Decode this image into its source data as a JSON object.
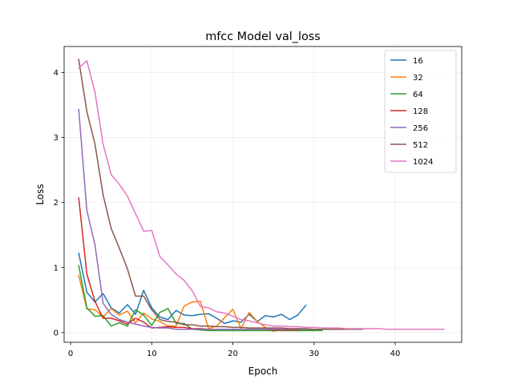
{
  "chart_data": {
    "type": "line",
    "title": "mfcc Model val_loss",
    "xlabel": "Epoch",
    "ylabel": "Loss",
    "xlim": [
      -0.8,
      48.2
    ],
    "ylim": [
      -0.15,
      4.4
    ],
    "xticks": [
      0,
      10,
      20,
      30,
      40
    ],
    "yticks": [
      0,
      1,
      2,
      3,
      4
    ],
    "grid": true,
    "legend_position": "top-right",
    "series": [
      {
        "name": "16",
        "color": "#1f77b4",
        "x": [
          1,
          2,
          3,
          4,
          5,
          6,
          7,
          8,
          9,
          10,
          11,
          12,
          13,
          14,
          15,
          16,
          17,
          18,
          19,
          20,
          21,
          22,
          23,
          24,
          25,
          26,
          27,
          28,
          29
        ],
        "y": [
          1.22,
          0.62,
          0.47,
          0.6,
          0.38,
          0.3,
          0.43,
          0.28,
          0.65,
          0.38,
          0.24,
          0.2,
          0.34,
          0.27,
          0.26,
          0.28,
          0.29,
          0.22,
          0.14,
          0.18,
          0.16,
          0.28,
          0.17,
          0.26,
          0.24,
          0.28,
          0.2,
          0.27,
          0.42
        ]
      },
      {
        "name": "32",
        "color": "#ff7f0e",
        "x": [
          1,
          2,
          3,
          4,
          5,
          6,
          7,
          8,
          9,
          10,
          11,
          12,
          13,
          14,
          15,
          16,
          17,
          18,
          19,
          20,
          21,
          22,
          23,
          24,
          25,
          26,
          27,
          28,
          29,
          30
        ],
        "y": [
          0.88,
          0.36,
          0.35,
          0.24,
          0.37,
          0.27,
          0.33,
          0.15,
          0.3,
          0.21,
          0.17,
          0.1,
          0.1,
          0.41,
          0.47,
          0.48,
          0.06,
          0.1,
          0.23,
          0.36,
          0.06,
          0.31,
          0.17,
          0.08,
          0.02,
          0.05,
          0.03,
          0.03,
          0.03,
          0.04
        ]
      },
      {
        "name": "64",
        "color": "#2ca02c",
        "x": [
          1,
          2,
          3,
          4,
          5,
          6,
          7,
          8,
          9,
          10,
          11,
          12,
          13,
          14,
          15,
          16,
          17,
          18,
          19,
          20,
          21,
          22,
          23,
          24,
          25,
          26,
          27,
          28,
          29,
          30,
          31
        ],
        "y": [
          1.03,
          0.38,
          0.25,
          0.26,
          0.1,
          0.15,
          0.1,
          0.35,
          0.27,
          0.11,
          0.31,
          0.37,
          0.14,
          0.14,
          0.05,
          0.04,
          0.03,
          0.03,
          0.03,
          0.03,
          0.03,
          0.03,
          0.03,
          0.03,
          0.03,
          0.03,
          0.03,
          0.03,
          0.03,
          0.03,
          0.03
        ]
      },
      {
        "name": "128",
        "color": "#d62728",
        "x": [
          1,
          2,
          3,
          4,
          5,
          6,
          7,
          8,
          9,
          10,
          11,
          12,
          13,
          14,
          15,
          16,
          17,
          18,
          19,
          20,
          21,
          22,
          23,
          24,
          25,
          26,
          27,
          28
        ],
        "y": [
          2.07,
          0.9,
          0.48,
          0.22,
          0.22,
          0.18,
          0.13,
          0.22,
          0.16,
          0.07,
          0.08,
          0.09,
          0.08,
          0.08,
          0.06,
          0.06,
          0.05,
          0.05,
          0.05,
          0.05,
          0.05,
          0.05,
          0.05,
          0.05,
          0.04,
          0.04,
          0.04,
          0.04
        ]
      },
      {
        "name": "256",
        "color": "#9467bd",
        "x": [
          1,
          2,
          3,
          4,
          5,
          6,
          7,
          8,
          9,
          10,
          11,
          12,
          13,
          14,
          15,
          16,
          17,
          18,
          19,
          20,
          21,
          22,
          23,
          24,
          25,
          26,
          27,
          28,
          29,
          30,
          31,
          32,
          33,
          34,
          35,
          36
        ],
        "y": [
          3.43,
          1.88,
          1.35,
          0.45,
          0.28,
          0.2,
          0.16,
          0.13,
          0.1,
          0.08,
          0.07,
          0.07,
          0.05,
          0.05,
          0.05,
          0.05,
          0.05,
          0.05,
          0.05,
          0.05,
          0.05,
          0.05,
          0.05,
          0.05,
          0.05,
          0.05,
          0.05,
          0.05,
          0.05,
          0.05,
          0.05,
          0.05,
          0.05,
          0.05,
          0.05,
          0.05
        ]
      },
      {
        "name": "512",
        "color": "#8c564b",
        "x": [
          1,
          2,
          3,
          4,
          5,
          6,
          7,
          8,
          9,
          10,
          11,
          12,
          13,
          14,
          15,
          16,
          17,
          18,
          19,
          20,
          21,
          22,
          23,
          24,
          25,
          26,
          27,
          28,
          29,
          30,
          31,
          32,
          33,
          34,
          35,
          36
        ],
        "y": [
          4.2,
          3.4,
          2.9,
          2.12,
          1.6,
          1.3,
          0.98,
          0.56,
          0.56,
          0.35,
          0.2,
          0.17,
          0.16,
          0.12,
          0.12,
          0.1,
          0.1,
          0.09,
          0.09,
          0.08,
          0.08,
          0.07,
          0.07,
          0.07,
          0.07,
          0.07,
          0.06,
          0.06,
          0.06,
          0.05,
          0.05,
          0.05,
          0.05,
          0.05,
          0.05,
          0.05
        ]
      },
      {
        "name": "1024",
        "color": "#e377c2",
        "x": [
          1,
          2,
          3,
          4,
          5,
          6,
          7,
          8,
          9,
          10,
          11,
          12,
          13,
          14,
          15,
          16,
          17,
          18,
          19,
          20,
          21,
          22,
          23,
          24,
          25,
          26,
          27,
          28,
          29,
          30,
          31,
          32,
          33,
          34,
          35,
          36,
          37,
          38,
          39,
          40,
          41,
          42,
          43,
          44,
          45,
          46
        ],
        "y": [
          4.07,
          4.18,
          3.7,
          2.9,
          2.43,
          2.28,
          2.1,
          1.83,
          1.56,
          1.57,
          1.17,
          1.04,
          0.9,
          0.8,
          0.64,
          0.4,
          0.38,
          0.32,
          0.3,
          0.25,
          0.2,
          0.18,
          0.15,
          0.12,
          0.1,
          0.1,
          0.09,
          0.09,
          0.08,
          0.08,
          0.07,
          0.07,
          0.07,
          0.06,
          0.06,
          0.06,
          0.06,
          0.06,
          0.05,
          0.05,
          0.05,
          0.05,
          0.05,
          0.05,
          0.05,
          0.05
        ]
      }
    ]
  }
}
